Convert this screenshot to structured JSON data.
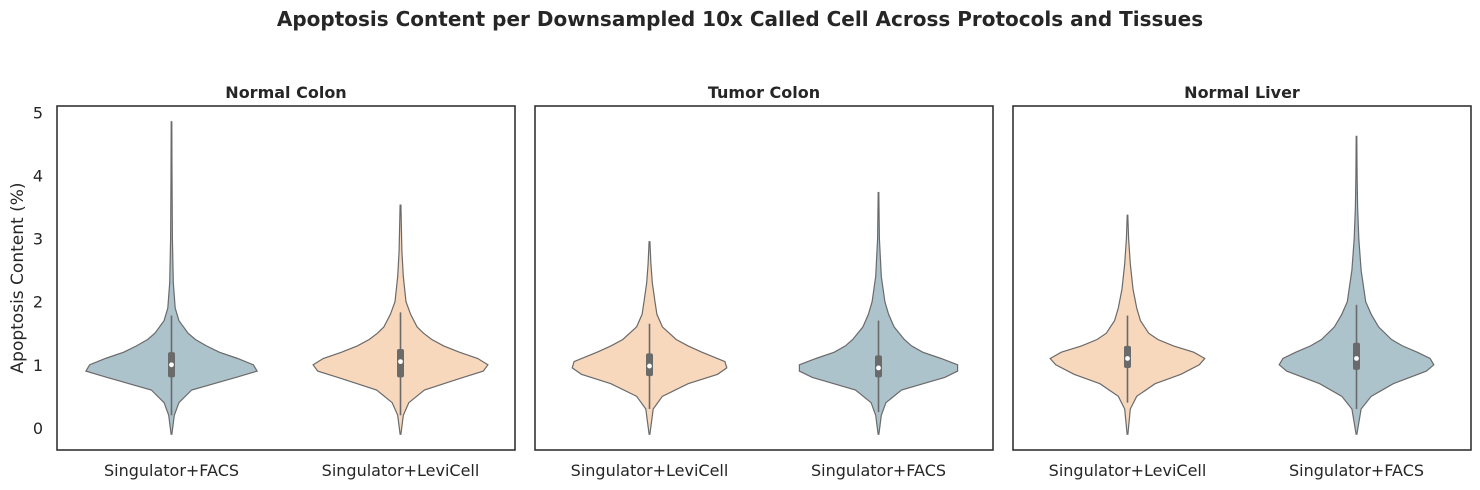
{
  "suptitle": "Apoptosis Content per Downsampled 10x Called Cell Across Protocols and Tissues",
  "colors": {
    "Singulator+FACS": "#adc3cb",
    "Singulator+LeviCell": "#f7d8bd"
  },
  "chart_data": [
    {
      "type": "violin",
      "title": "Normal Colon",
      "ylabel": "Apoptosis Content (%)",
      "ylim": [
        -0.35,
        5.1
      ],
      "yticks": [
        0,
        1,
        2,
        3,
        4,
        5
      ],
      "categories": [
        "Singulator+FACS",
        "Singulator+LeviCell"
      ],
      "series": [
        {
          "name": "Singulator+FACS",
          "min": -0.1,
          "max": 4.85,
          "q1": 0.8,
          "median": 1.0,
          "q3": 1.2,
          "whisker_low": 0.2,
          "whisker_high": 1.78,
          "density": [
            [
              -0.1,
              0.004
            ],
            [
              0.2,
              0.03
            ],
            [
              0.4,
              0.08
            ],
            [
              0.6,
              0.22
            ],
            [
              0.8,
              0.7
            ],
            [
              0.9,
              0.93
            ],
            [
              1.0,
              0.89
            ],
            [
              1.1,
              0.72
            ],
            [
              1.2,
              0.52
            ],
            [
              1.3,
              0.38
            ],
            [
              1.4,
              0.26
            ],
            [
              1.5,
              0.18
            ],
            [
              1.7,
              0.08
            ],
            [
              1.9,
              0.04
            ],
            [
              2.3,
              0.02
            ],
            [
              3.0,
              0.01
            ],
            [
              4.0,
              0.005
            ],
            [
              4.85,
              0.003
            ]
          ]
        },
        {
          "name": "Singulator+LeviCell",
          "min": -0.1,
          "max": 3.53,
          "q1": 0.8,
          "median": 1.05,
          "q3": 1.25,
          "whisker_low": 0.2,
          "whisker_high": 1.83,
          "density": [
            [
              -0.1,
              0.004
            ],
            [
              0.2,
              0.03
            ],
            [
              0.4,
              0.09
            ],
            [
              0.6,
              0.26
            ],
            [
              0.8,
              0.68
            ],
            [
              0.9,
              0.9
            ],
            [
              1.0,
              0.95
            ],
            [
              1.1,
              0.84
            ],
            [
              1.2,
              0.64
            ],
            [
              1.3,
              0.47
            ],
            [
              1.4,
              0.34
            ],
            [
              1.5,
              0.25
            ],
            [
              1.6,
              0.18
            ],
            [
              1.8,
              0.11
            ],
            [
              2.0,
              0.06
            ],
            [
              2.4,
              0.03
            ],
            [
              2.8,
              0.015
            ],
            [
              3.53,
              0.004
            ]
          ]
        }
      ]
    },
    {
      "type": "violin",
      "title": "Tumor Colon",
      "ylim": [
        -0.35,
        5.1
      ],
      "categories": [
        "Singulator+LeviCell",
        "Singulator+FACS"
      ],
      "series": [
        {
          "name": "Singulator+LeviCell",
          "min": -0.1,
          "max": 2.95,
          "q1": 0.82,
          "median": 0.98,
          "q3": 1.18,
          "whisker_low": 0.3,
          "whisker_high": 1.65,
          "density": [
            [
              -0.1,
              0.004
            ],
            [
              0.3,
              0.04
            ],
            [
              0.5,
              0.14
            ],
            [
              0.7,
              0.42
            ],
            [
              0.85,
              0.74
            ],
            [
              0.95,
              0.84
            ],
            [
              1.05,
              0.82
            ],
            [
              1.2,
              0.57
            ],
            [
              1.3,
              0.42
            ],
            [
              1.4,
              0.29
            ],
            [
              1.6,
              0.14
            ],
            [
              1.8,
              0.08
            ],
            [
              2.0,
              0.06
            ],
            [
              2.3,
              0.03
            ],
            [
              2.6,
              0.015
            ],
            [
              2.95,
              0.004
            ]
          ]
        },
        {
          "name": "Singulator+FACS",
          "min": -0.1,
          "max": 3.73,
          "q1": 0.8,
          "median": 0.95,
          "q3": 1.15,
          "whisker_low": 0.25,
          "whisker_high": 1.7,
          "density": [
            [
              -0.1,
              0.004
            ],
            [
              0.2,
              0.03
            ],
            [
              0.4,
              0.08
            ],
            [
              0.6,
              0.25
            ],
            [
              0.8,
              0.72
            ],
            [
              0.9,
              0.86
            ],
            [
              1.0,
              0.86
            ],
            [
              1.1,
              0.68
            ],
            [
              1.2,
              0.48
            ],
            [
              1.3,
              0.36
            ],
            [
              1.4,
              0.28
            ],
            [
              1.6,
              0.17
            ],
            [
              1.8,
              0.11
            ],
            [
              2.0,
              0.07
            ],
            [
              2.4,
              0.03
            ],
            [
              3.0,
              0.01
            ],
            [
              3.73,
              0.003
            ]
          ]
        }
      ]
    },
    {
      "type": "violin",
      "title": "Normal Liver",
      "ylim": [
        -0.35,
        5.1
      ],
      "categories": [
        "Singulator+LeviCell",
        "Singulator+FACS"
      ],
      "series": [
        {
          "name": "Singulator+LeviCell",
          "min": -0.1,
          "max": 3.37,
          "q1": 0.95,
          "median": 1.1,
          "q3": 1.3,
          "whisker_low": 0.4,
          "whisker_high": 1.78,
          "density": [
            [
              -0.1,
              0.004
            ],
            [
              0.3,
              0.03
            ],
            [
              0.5,
              0.1
            ],
            [
              0.7,
              0.3
            ],
            [
              0.85,
              0.58
            ],
            [
              1.0,
              0.78
            ],
            [
              1.1,
              0.84
            ],
            [
              1.2,
              0.72
            ],
            [
              1.3,
              0.5
            ],
            [
              1.4,
              0.33
            ],
            [
              1.5,
              0.23
            ],
            [
              1.7,
              0.14
            ],
            [
              1.9,
              0.1
            ],
            [
              2.2,
              0.06
            ],
            [
              2.6,
              0.03
            ],
            [
              3.0,
              0.012
            ],
            [
              3.37,
              0.003
            ]
          ]
        },
        {
          "name": "Singulator+FACS",
          "min": -0.1,
          "max": 4.62,
          "q1": 0.92,
          "median": 1.1,
          "q3": 1.35,
          "whisker_low": 0.3,
          "whisker_high": 1.95,
          "density": [
            [
              -0.1,
              0.004
            ],
            [
              0.3,
              0.05
            ],
            [
              0.5,
              0.16
            ],
            [
              0.7,
              0.4
            ],
            [
              0.9,
              0.76
            ],
            [
              1.0,
              0.84
            ],
            [
              1.1,
              0.8
            ],
            [
              1.2,
              0.66
            ],
            [
              1.3,
              0.5
            ],
            [
              1.4,
              0.38
            ],
            [
              1.6,
              0.24
            ],
            [
              1.8,
              0.16
            ],
            [
              2.0,
              0.1
            ],
            [
              2.5,
              0.05
            ],
            [
              3.0,
              0.025
            ],
            [
              3.5,
              0.012
            ],
            [
              4.0,
              0.006
            ],
            [
              4.62,
              0.003
            ]
          ]
        }
      ]
    }
  ]
}
